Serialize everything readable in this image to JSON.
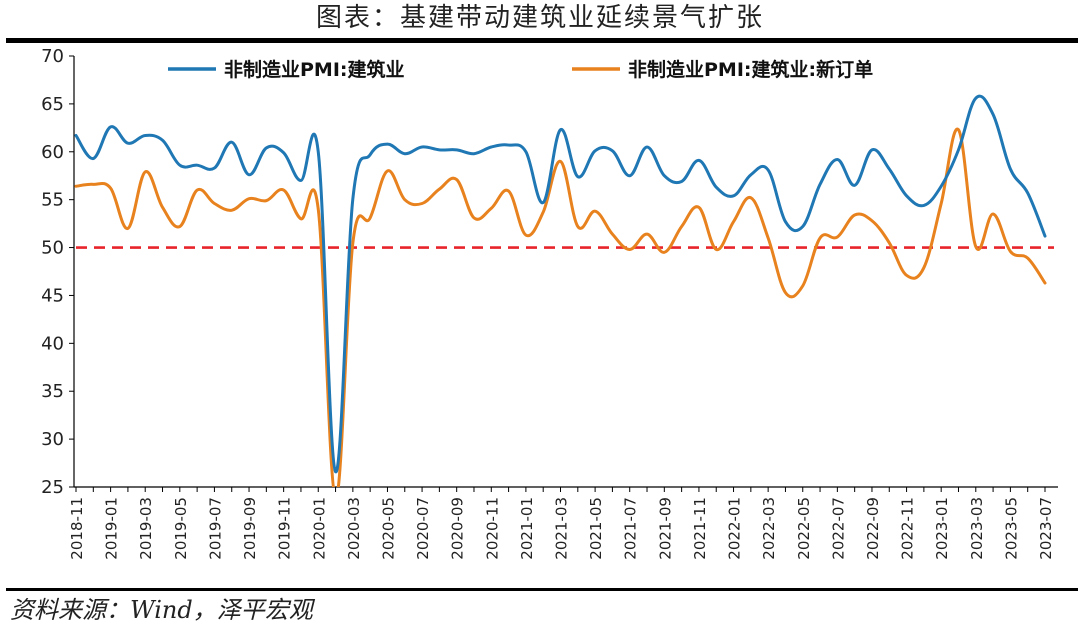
{
  "title": "图表：基建带动建筑业延续景气扩张",
  "source": "资料来源：Wind，泽平宏观",
  "colors": {
    "series_0": "#1f77b4",
    "series_1": "#e8821e",
    "reference": "#e8242b"
  },
  "chart_data": {
    "type": "line",
    "ylim": [
      25,
      70
    ],
    "yticks": [
      25,
      30,
      35,
      40,
      45,
      50,
      55,
      60,
      65,
      70
    ],
    "legend_position": "top",
    "grid": false,
    "x": [
      "2018-11",
      "2018-12",
      "2019-01",
      "2019-02",
      "2019-03",
      "2019-04",
      "2019-05",
      "2019-06",
      "2019-07",
      "2019-08",
      "2019-09",
      "2019-10",
      "2019-11",
      "2019-12",
      "2020-01",
      "2020-02",
      "2020-03",
      "2020-04",
      "2020-05",
      "2020-06",
      "2020-07",
      "2020-08",
      "2020-09",
      "2020-10",
      "2020-11",
      "2020-12",
      "2021-01",
      "2021-02",
      "2021-03",
      "2021-04",
      "2021-05",
      "2021-06",
      "2021-07",
      "2021-08",
      "2021-09",
      "2021-10",
      "2021-11",
      "2021-12",
      "2022-01",
      "2022-02",
      "2022-03",
      "2022-04",
      "2022-05",
      "2022-06",
      "2022-07",
      "2022-08",
      "2022-09",
      "2022-10",
      "2022-11",
      "2022-12",
      "2023-01",
      "2023-02",
      "2023-03",
      "2023-04",
      "2023-05",
      "2023-06",
      "2023-07"
    ],
    "xticks": [
      "2018-11",
      "2019-01",
      "2019-03",
      "2019-05",
      "2019-07",
      "2019-09",
      "2019-11",
      "2020-01",
      "2020-03",
      "2020-05",
      "2020-07",
      "2020-09",
      "2020-11",
      "2021-01",
      "2021-03",
      "2021-05",
      "2021-07",
      "2021-09",
      "2021-11",
      "2022-01",
      "2022-03",
      "2022-05",
      "2022-07",
      "2022-09",
      "2022-11",
      "2023-01",
      "2023-03",
      "2023-05",
      "2023-07"
    ],
    "series": [
      {
        "name": "非制造业PMI:建筑业",
        "values": [
          61.7,
          59.3,
          62.6,
          60.9,
          61.7,
          61.2,
          58.6,
          58.6,
          58.3,
          61.0,
          57.6,
          60.4,
          59.9,
          57.0,
          60.0,
          26.6,
          55.1,
          59.7,
          60.8,
          59.8,
          60.5,
          60.2,
          60.2,
          59.8,
          60.5,
          60.7,
          60.0,
          54.7,
          62.3,
          57.4,
          60.1,
          60.1,
          57.5,
          60.5,
          57.5,
          56.9,
          59.1,
          56.3,
          55.4,
          57.6,
          58.1,
          52.7,
          52.2,
          56.6,
          59.2,
          56.5,
          60.2,
          58.2,
          55.4,
          54.4,
          56.4,
          60.2,
          65.6,
          63.9,
          58.2,
          55.7,
          51.2
        ]
      },
      {
        "name": "非制造业PMI:建筑业:新订单",
        "values": [
          56.4,
          56.6,
          56.2,
          52.0,
          57.9,
          54.2,
          52.2,
          56.0,
          54.6,
          53.9,
          55.1,
          54.9,
          56.0,
          53.0,
          54.0,
          23.8,
          50.5,
          53.1,
          58.0,
          55.0,
          54.6,
          56.1,
          57.1,
          53.1,
          54.1,
          55.9,
          51.3,
          53.7,
          59.0,
          52.2,
          53.8,
          51.4,
          49.8,
          51.4,
          49.5,
          52.2,
          54.2,
          49.8,
          52.7,
          55.2,
          51.0,
          45.3,
          46.0,
          51.0,
          51.1,
          53.4,
          52.8,
          50.5,
          47.1,
          47.9,
          54.6,
          62.3,
          50.1,
          53.5,
          49.6,
          48.9,
          46.3
        ]
      }
    ],
    "reference_line": {
      "y": 50,
      "style": "dashed"
    }
  }
}
